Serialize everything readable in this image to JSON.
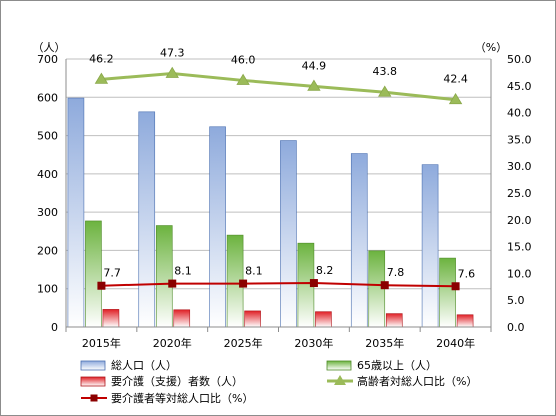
{
  "chart_data": {
    "type": "bar",
    "categories": [
      "2015年",
      "2020年",
      "2025年",
      "2030年",
      "2035年",
      "2040年"
    ],
    "y_left": {
      "unit": "（人）",
      "min": 0,
      "max": 700,
      "step": 100,
      "ticks": [
        "0",
        "100",
        "200",
        "300",
        "400",
        "500",
        "600",
        "700"
      ]
    },
    "y_right": {
      "unit": "（%）",
      "min": 0,
      "max": 50,
      "step": 5,
      "ticks": [
        "0.0",
        "5.0",
        "10.0",
        "15.0",
        "20.0",
        "25.0",
        "30.0",
        "35.0",
        "40.0",
        "45.0",
        "50.0"
      ]
    },
    "grid": true,
    "legend_position": "bottom",
    "series": [
      {
        "name": "総人口（人）",
        "type": "bar",
        "axis": "left",
        "color": "#9bb7e3",
        "values": [
          598,
          562,
          523,
          487,
          453,
          424
        ]
      },
      {
        "name": "65歳以上（人）",
        "type": "bar",
        "axis": "left",
        "color": "#7ac142",
        "values": [
          277,
          265,
          240,
          219,
          199,
          180
        ]
      },
      {
        "name": "要介護（支援）者数（人）",
        "type": "bar",
        "axis": "left",
        "color": "#e0262b",
        "values": [
          46,
          45,
          42,
          40,
          35,
          32
        ]
      },
      {
        "name": "高齢者対総人口比（%）",
        "type": "line",
        "axis": "right",
        "color": "#9bbb59",
        "marker": "triangle",
        "values": [
          46.2,
          47.3,
          46.0,
          44.9,
          43.8,
          42.4
        ],
        "labels": [
          "46.2",
          "47.3",
          "46.0",
          "44.9",
          "43.8",
          "42.4"
        ]
      },
      {
        "name": "要介護者等対総人口比（%）",
        "type": "line",
        "axis": "right",
        "color": "#c00000",
        "marker": "square",
        "values": [
          7.7,
          8.1,
          8.1,
          8.2,
          7.8,
          7.6
        ],
        "labels": [
          "7.7",
          "8.1",
          "8.1",
          "8.2",
          "7.8",
          "7.6"
        ]
      }
    ]
  }
}
